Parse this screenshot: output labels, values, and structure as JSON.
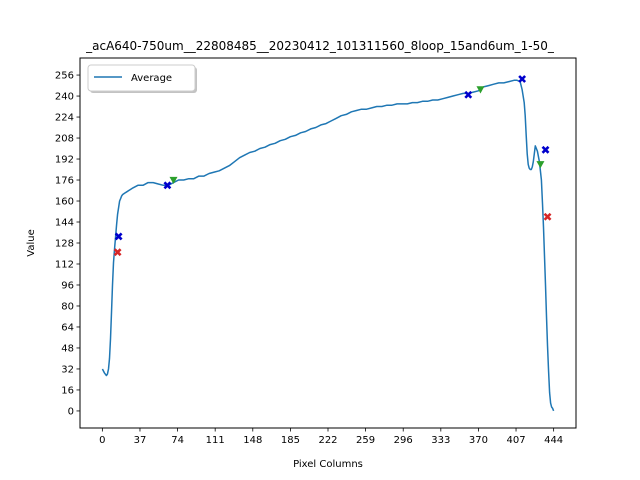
{
  "chart_data": {
    "type": "line",
    "title": "_acA640-750um__22808485__20230412_101311560_8loop_15and6um_1-50_",
    "xlabel": "Pixel Columns",
    "ylabel": "Value",
    "xlim": [
      -22,
      466
    ],
    "ylim": [
      -13,
      269
    ],
    "x_ticks": [
      0,
      37,
      74,
      111,
      148,
      185,
      222,
      259,
      296,
      333,
      370,
      407,
      444
    ],
    "y_ticks": [
      0,
      16,
      32,
      48,
      64,
      80,
      96,
      112,
      128,
      144,
      160,
      176,
      192,
      208,
      224,
      240,
      256
    ],
    "grid": false,
    "legend": {
      "position": "upper-left",
      "entries": [
        "Average"
      ]
    },
    "colors": {
      "line": "#1f77b4",
      "red_marker": "#d62728",
      "blue_marker": "#0000cc",
      "green_marker": "#2ca02c"
    },
    "series": [
      {
        "name": "Average",
        "x": [
          0,
          2,
          4,
          5,
          6,
          7,
          8,
          9,
          10,
          11,
          12,
          13,
          14,
          15,
          16,
          17,
          18,
          19,
          20,
          22,
          24,
          26,
          28,
          30,
          35,
          40,
          45,
          50,
          55,
          60,
          65,
          70,
          75,
          80,
          85,
          90,
          95,
          100,
          105,
          110,
          115,
          120,
          125,
          130,
          135,
          140,
          145,
          150,
          155,
          160,
          165,
          170,
          175,
          180,
          185,
          190,
          195,
          200,
          205,
          210,
          215,
          220,
          225,
          230,
          235,
          240,
          245,
          250,
          255,
          260,
          265,
          270,
          275,
          280,
          285,
          290,
          295,
          300,
          305,
          310,
          315,
          320,
          325,
          330,
          335,
          340,
          345,
          350,
          355,
          360,
          365,
          370,
          375,
          380,
          385,
          390,
          395,
          400,
          405,
          408,
          411,
          413,
          415,
          416,
          417,
          418,
          419,
          420,
          421,
          422,
          423,
          424,
          425,
          426,
          428,
          430,
          432,
          433,
          434,
          435,
          436,
          437,
          438,
          439,
          440,
          441,
          442,
          443,
          444
        ],
        "y": [
          32,
          29,
          27,
          28,
          32,
          40,
          55,
          75,
          96,
          113,
          124,
          133,
          142,
          150,
          155,
          160,
          162,
          164,
          165,
          166,
          167,
          168,
          169,
          170,
          172,
          172,
          174,
          174,
          173,
          172,
          172,
          174,
          176,
          176,
          177,
          177,
          179,
          179,
          181,
          182,
          183,
          185,
          187,
          190,
          193,
          195,
          197,
          198,
          200,
          201,
          203,
          204,
          206,
          207,
          209,
          210,
          212,
          213,
          215,
          216,
          218,
          219,
          221,
          223,
          225,
          226,
          228,
          229,
          230,
          230,
          231,
          232,
          232,
          233,
          233,
          234,
          234,
          234,
          235,
          235,
          236,
          236,
          237,
          237,
          238,
          239,
          240,
          241,
          242,
          242,
          243,
          244,
          247,
          248,
          249,
          250,
          250,
          251,
          252,
          252,
          251,
          245,
          235,
          225,
          210,
          196,
          188,
          185,
          184,
          184,
          186,
          190,
          196,
          202,
          198,
          190,
          176,
          158,
          140,
          118,
          96,
          72,
          50,
          30,
          14,
          6,
          3,
          2,
          0
        ]
      }
    ],
    "markers": {
      "red_x": [
        [
          15,
          121
        ],
        [
          438,
          148
        ]
      ],
      "blue_x": [
        [
          16,
          133
        ],
        [
          64,
          172
        ],
        [
          360,
          241
        ],
        [
          413,
          253
        ],
        [
          436,
          199
        ]
      ],
      "green_triangle": [
        [
          70,
          176
        ],
        [
          372,
          245
        ],
        [
          431,
          188
        ]
      ]
    }
  }
}
